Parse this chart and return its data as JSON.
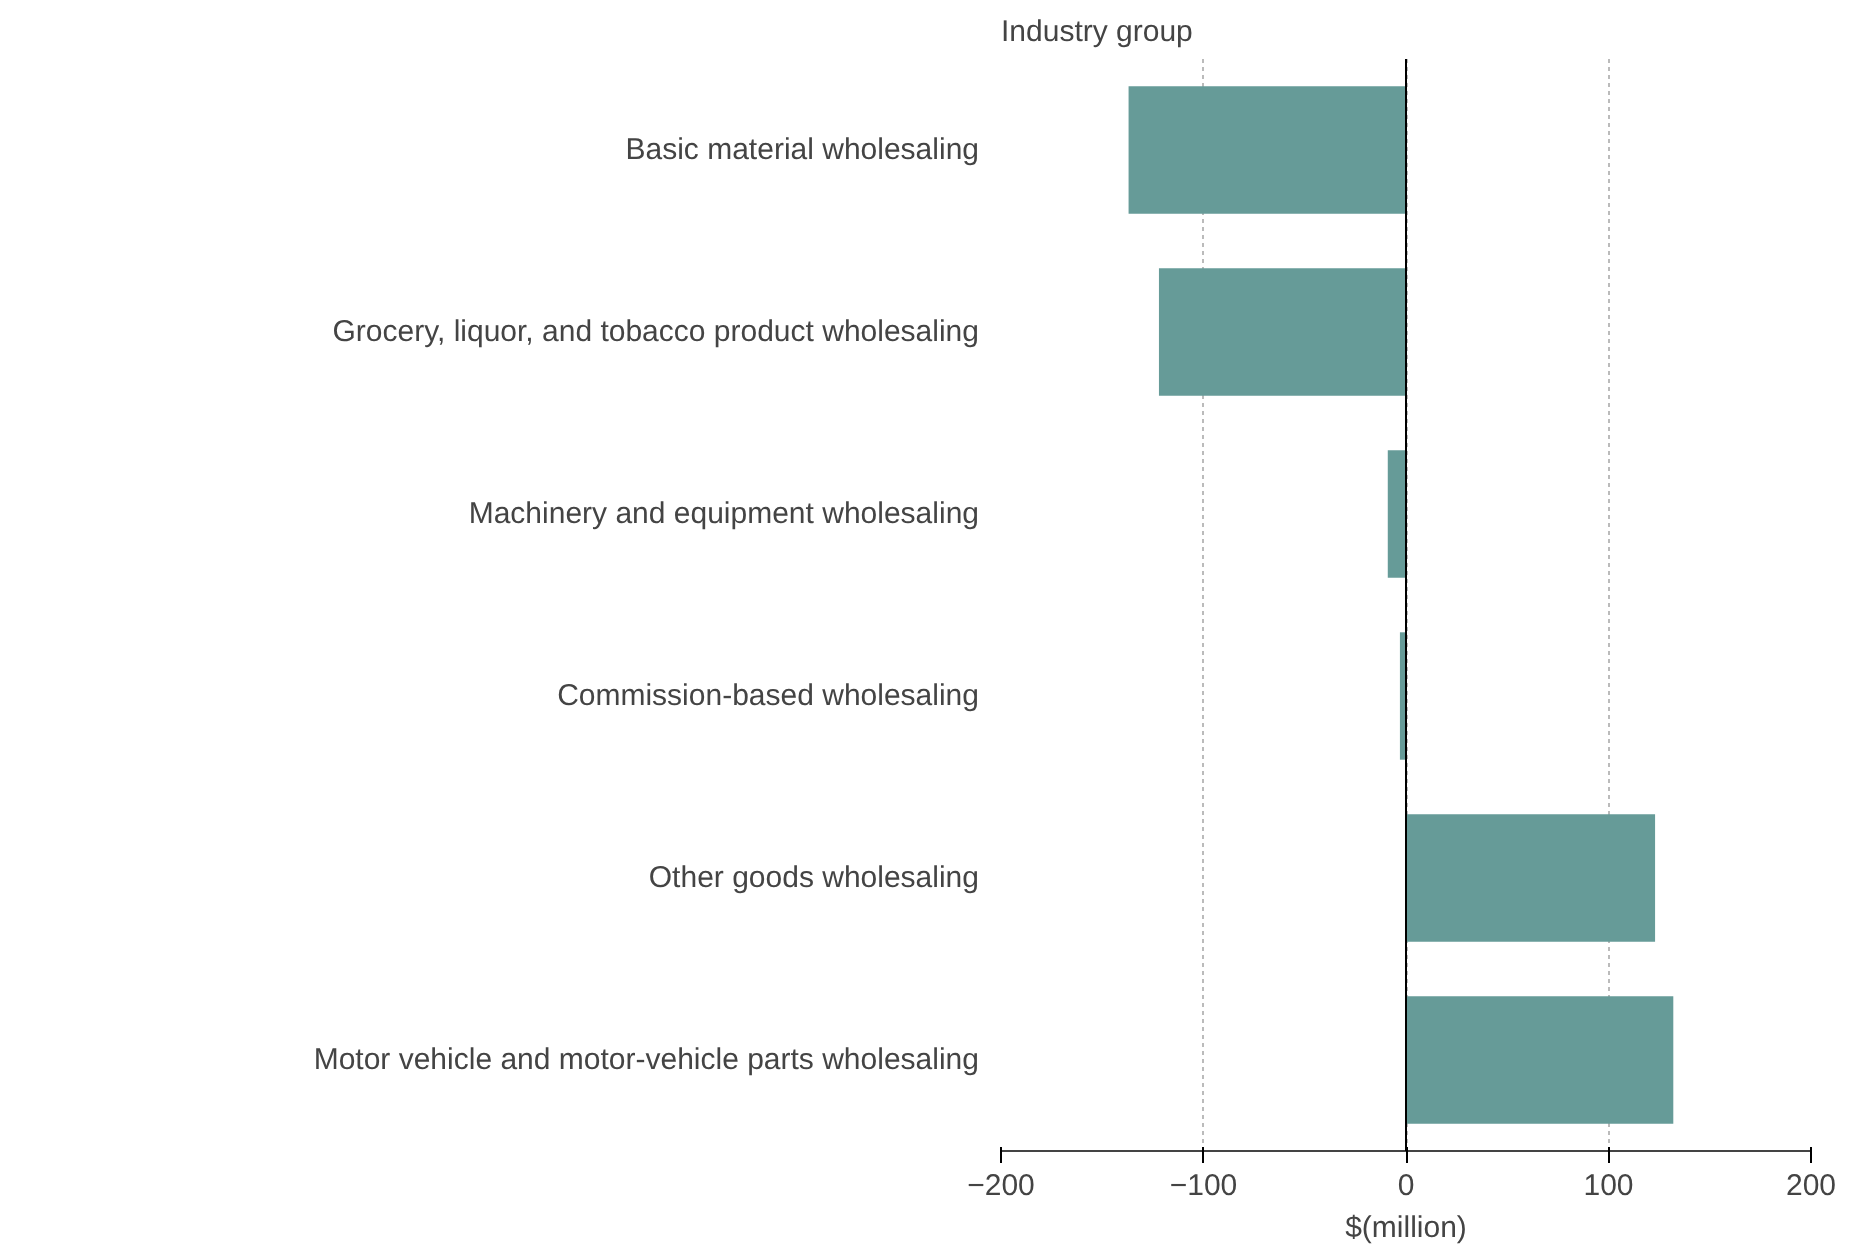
{
  "chart_data": {
    "type": "bar",
    "orientation": "horizontal",
    "ylabel": "Industry group",
    "xlabel": "$(million)",
    "categories": [
      "Basic material wholesaling",
      "Grocery, liquor, and tobacco product wholesaling",
      "Machinery and equipment wholesaling",
      "Commission-based wholesaling",
      "Other goods wholesaling",
      "Motor vehicle and motor-vehicle parts wholesaling"
    ],
    "values": [
      -137,
      -122,
      -9,
      -3,
      123,
      132
    ],
    "color": "#669b98",
    "xlim": [
      -200,
      200
    ],
    "xticks": [
      -200,
      -100,
      0,
      100,
      200
    ],
    "grid": "x",
    "ref_lines": [
      {
        "axis": "x",
        "value": 0,
        "color": "#000000"
      }
    ]
  }
}
